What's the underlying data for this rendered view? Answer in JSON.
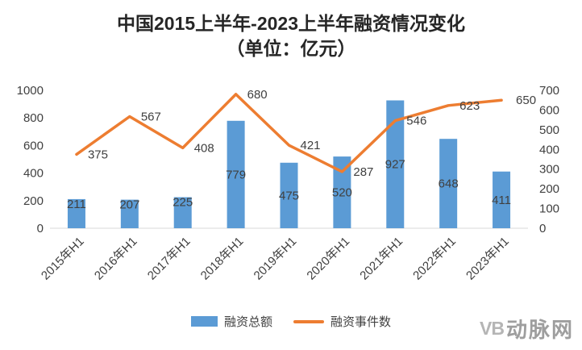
{
  "title": {
    "line1": "中国2015上半年-2023上半年融资情况变化",
    "line2": "（单位：亿元）"
  },
  "legend": [
    {
      "label": "融资总额",
      "type": "bar",
      "color": "#5B9BD5"
    },
    {
      "label": "融资事件数",
      "type": "line",
      "color": "#ED7D31"
    }
  ],
  "watermark": {
    "logo": "VB",
    "text": "动脉网"
  },
  "chart_data": {
    "type": "bar",
    "subtype": "combo-bar-line",
    "title": "中国2015上半年-2023上半年融资情况变化（单位：亿元）",
    "categories": [
      "2015年H1",
      "2016年H1",
      "2017年H1",
      "2018年H1",
      "2019年H1",
      "2020年H1",
      "2021年H1",
      "2022年H1",
      "2023年H1"
    ],
    "series": [
      {
        "name": "融资总额",
        "type": "bar",
        "axis": "left",
        "color": "#5B9BD5",
        "values": [
          211,
          207,
          225,
          779,
          475,
          520,
          927,
          648,
          411
        ]
      },
      {
        "name": "融资事件数",
        "type": "line",
        "axis": "right",
        "color": "#ED7D31",
        "values": [
          375,
          567,
          408,
          680,
          421,
          287,
          546,
          623,
          650
        ]
      }
    ],
    "left_axis": {
      "min": 0,
      "max": 1000,
      "step": 200,
      "ticks": [
        0,
        200,
        400,
        600,
        800,
        1000
      ]
    },
    "right_axis": {
      "min": 0,
      "max": 700,
      "step": 100,
      "ticks": [
        0,
        100,
        200,
        300,
        400,
        500,
        600,
        700
      ]
    },
    "grid": false,
    "legend_position": "bottom",
    "text_color": "#404040"
  }
}
